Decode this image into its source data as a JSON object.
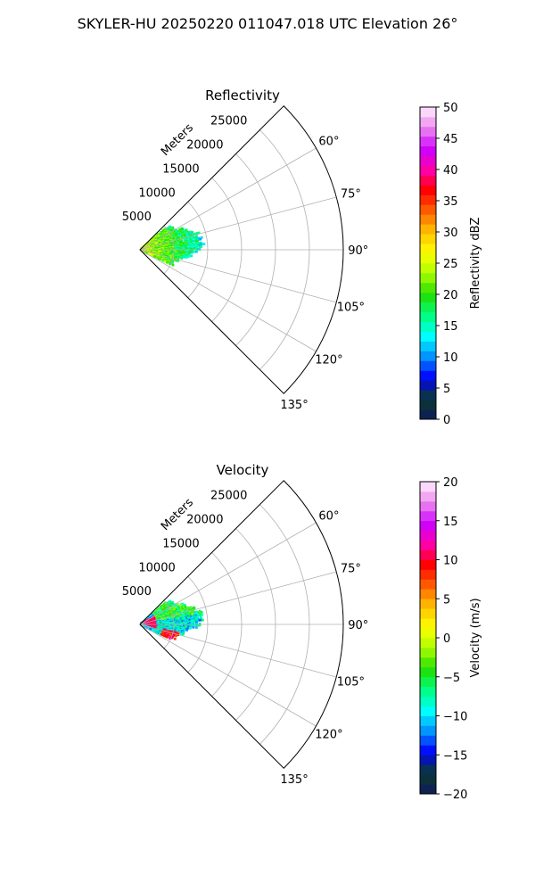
{
  "suptitle": "SKYLER-HU  20250220  011047.018 UTC Elevation 26°",
  "chart_data": [
    {
      "type": "heatmap",
      "title": "Reflectivity",
      "radial_label": "Meters",
      "radial_ticks": [
        "5000",
        "10000",
        "15000",
        "20000",
        "25000"
      ],
      "radial_tick_values": [
        5000,
        10000,
        15000,
        20000,
        25000
      ],
      "rlim": [
        0,
        30000
      ],
      "angle_ticks": [
        "60°",
        "75°",
        "90°",
        "105°",
        "120°",
        "135°"
      ],
      "angle_tick_values": [
        60,
        75,
        90,
        105,
        120,
        135
      ],
      "thetalim": [
        45,
        135
      ],
      "grid": true,
      "colorbar": {
        "label": "Reflectivity dBZ",
        "range": [
          0,
          50
        ],
        "ticks": [
          "0",
          "5",
          "10",
          "15",
          "20",
          "25",
          "30",
          "35",
          "40",
          "45",
          "50"
        ],
        "colormap": [
          "#0e1a5a",
          "#0b3b2e",
          "#0000ff",
          "#0090ff",
          "#00ffff",
          "#00ff80",
          "#22dd00",
          "#aaff00",
          "#ffff00",
          "#ffc000",
          "#ff6000",
          "#ff0000",
          "#ff00aa",
          "#cc00ff",
          "#ee88ee",
          "#fff0ff"
        ]
      },
      "echo": {
        "range_extent_m": [
          0,
          9500
        ],
        "azimuth_extent_deg": [
          50,
          115
        ],
        "typical_dbz": [
          10,
          30
        ]
      }
    },
    {
      "type": "heatmap",
      "title": "Velocity",
      "radial_label": "Meters",
      "radial_ticks": [
        "5000",
        "10000",
        "15000",
        "20000",
        "25000"
      ],
      "radial_tick_values": [
        5000,
        10000,
        15000,
        20000,
        25000
      ],
      "rlim": [
        0,
        30000
      ],
      "angle_ticks": [
        "60°",
        "75°",
        "90°",
        "105°",
        "120°",
        "135°"
      ],
      "angle_tick_values": [
        60,
        75,
        90,
        105,
        120,
        135
      ],
      "thetalim": [
        45,
        135
      ],
      "grid": true,
      "colorbar": {
        "label": "Velocity (m/s)",
        "range": [
          -20,
          20
        ],
        "ticks": [
          "−20",
          "−15",
          "−10",
          "−5",
          "0",
          "5",
          "10",
          "15",
          "20"
        ],
        "colormap": [
          "#0e1a5a",
          "#0b3b2e",
          "#0000ff",
          "#0090ff",
          "#00ffff",
          "#00ff80",
          "#22dd00",
          "#aaff00",
          "#ffff00",
          "#ffc000",
          "#ff6000",
          "#ff0000",
          "#ff00aa",
          "#cc00ff",
          "#ee88ee",
          "#fff0ff"
        ]
      },
      "echo": {
        "range_extent_m": [
          0,
          9500
        ],
        "azimuth_extent_deg": [
          50,
          115
        ],
        "typical_velocity_ms": [
          -12,
          12
        ]
      }
    }
  ]
}
